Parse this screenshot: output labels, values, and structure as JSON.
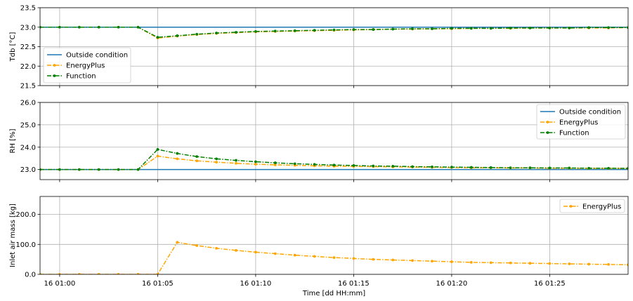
{
  "chart_data": [
    {
      "type": "line",
      "ylabel": "Tdb [°C]",
      "ylim": [
        21.5,
        23.5
      ],
      "yticks": [
        21.5,
        22.0,
        22.5,
        23.0,
        23.5
      ],
      "ytick_labels": [
        "21.5",
        "22.0",
        "22.5",
        "23.0",
        "23.5"
      ],
      "grid": true,
      "legend_position": "lower-left",
      "x": [
        -1,
        0,
        1,
        2,
        3,
        4,
        5,
        6,
        7,
        8,
        9,
        10,
        11,
        12,
        13,
        14,
        15,
        16,
        17,
        18,
        19,
        20,
        21,
        22,
        23,
        24,
        25,
        26,
        27,
        28,
        29
      ],
      "series": [
        {
          "name": "Outside condition",
          "color": "#1f77b4",
          "style": "solid",
          "marker": "none",
          "values": [
            23.0,
            23.0,
            23.0,
            23.0,
            23.0,
            23.0,
            23.0,
            23.0,
            23.0,
            23.0,
            23.0,
            23.0,
            23.0,
            23.0,
            23.0,
            23.0,
            23.0,
            23.0,
            23.0,
            23.0,
            23.0,
            23.0,
            23.0,
            23.0,
            23.0,
            23.0,
            23.0,
            23.0,
            23.0,
            23.0,
            23.0
          ]
        },
        {
          "name": "EnergyPlus",
          "color": "#ffa500",
          "style": "dashdot",
          "marker": "dot",
          "values": [
            23.0,
            23.0,
            23.0,
            23.0,
            23.0,
            23.0,
            22.72,
            22.77,
            22.81,
            22.84,
            22.86,
            22.88,
            22.89,
            22.9,
            22.91,
            22.92,
            22.93,
            22.94,
            22.95,
            22.95,
            22.96,
            22.96,
            22.97,
            22.97,
            22.97,
            22.98,
            22.98,
            22.98,
            22.98,
            22.98,
            22.99
          ]
        },
        {
          "name": "Function",
          "color": "#008000",
          "style": "dashdot",
          "marker": "dot",
          "values": [
            23.0,
            23.0,
            23.0,
            23.0,
            23.0,
            23.0,
            22.74,
            22.78,
            22.82,
            22.85,
            22.87,
            22.89,
            22.9,
            22.91,
            22.92,
            22.93,
            22.94,
            22.94,
            22.95,
            22.96,
            22.96,
            22.97,
            22.97,
            22.97,
            22.98,
            22.98,
            22.98,
            22.98,
            22.99,
            22.99,
            22.99
          ]
        }
      ]
    },
    {
      "type": "line",
      "ylabel": "RH [%]",
      "ylim": [
        22.55,
        26.0
      ],
      "yticks": [
        23.0,
        24.0,
        25.0,
        26.0
      ],
      "ytick_labels": [
        "23.0",
        "24.0",
        "25.0",
        "26.0"
      ],
      "grid": true,
      "legend_position": "top-right",
      "x": [
        -1,
        0,
        1,
        2,
        3,
        4,
        5,
        6,
        7,
        8,
        9,
        10,
        11,
        12,
        13,
        14,
        15,
        16,
        17,
        18,
        19,
        20,
        21,
        22,
        23,
        24,
        25,
        26,
        27,
        28,
        29
      ],
      "series": [
        {
          "name": "Outside condition",
          "color": "#1f77b4",
          "style": "solid",
          "marker": "none",
          "values": [
            23.0,
            23.0,
            23.0,
            23.0,
            23.0,
            23.0,
            23.0,
            23.0,
            23.0,
            23.0,
            23.0,
            23.0,
            23.0,
            23.0,
            23.0,
            23.0,
            23.0,
            23.0,
            23.0,
            23.0,
            23.0,
            23.0,
            23.0,
            23.0,
            23.0,
            23.0,
            23.0,
            23.0,
            23.0,
            23.0,
            23.0
          ]
        },
        {
          "name": "EnergyPlus",
          "color": "#ffa500",
          "style": "dashdot",
          "marker": "dot",
          "values": [
            23.0,
            23.0,
            23.0,
            23.0,
            23.0,
            23.0,
            23.6,
            23.48,
            23.39,
            23.33,
            23.28,
            23.24,
            23.21,
            23.19,
            23.17,
            23.15,
            23.14,
            23.13,
            23.12,
            23.11,
            23.1,
            23.09,
            23.08,
            23.08,
            23.07,
            23.07,
            23.06,
            23.06,
            23.05,
            23.05,
            23.05
          ]
        },
        {
          "name": "Function",
          "color": "#008000",
          "style": "dashdot",
          "marker": "dot",
          "values": [
            23.0,
            23.0,
            23.0,
            23.0,
            23.0,
            23.0,
            23.9,
            23.72,
            23.58,
            23.48,
            23.41,
            23.35,
            23.3,
            23.26,
            23.23,
            23.2,
            23.18,
            23.16,
            23.15,
            23.13,
            23.12,
            23.11,
            23.1,
            23.09,
            23.08,
            23.08,
            23.07,
            23.07,
            23.06,
            23.06,
            23.05
          ]
        }
      ]
    },
    {
      "type": "line",
      "ylabel": "Inlet air mass [kg]",
      "xlabel": "Time [dd HH:mm]",
      "ylim": [
        0,
        260
      ],
      "yticks": [
        0,
        100,
        200
      ],
      "ytick_labels": [
        "0.0",
        "100.0",
        "200.0"
      ],
      "grid": true,
      "legend_position": "top-right",
      "x": [
        -1,
        0,
        1,
        2,
        3,
        4,
        5,
        6,
        7,
        8,
        9,
        10,
        11,
        12,
        13,
        14,
        15,
        16,
        17,
        18,
        19,
        20,
        21,
        22,
        23,
        24,
        25,
        26,
        27,
        28,
        29
      ],
      "series": [
        {
          "name": "EnergyPlus",
          "color": "#ffa500",
          "style": "dashdot",
          "marker": "dot",
          "values": [
            0,
            0,
            0,
            0,
            0,
            0,
            0,
            107,
            96,
            87,
            80,
            74,
            69,
            64,
            60,
            56,
            53,
            50,
            48,
            46,
            44,
            42,
            40,
            39,
            38,
            37,
            36,
            35,
            34,
            33,
            32
          ]
        }
      ]
    }
  ],
  "x_axis": {
    "range": [
      -1,
      29
    ],
    "ticks": [
      0,
      5,
      10,
      15,
      20,
      25
    ],
    "tick_labels": [
      "16 01:00",
      "16 01:05",
      "16 01:10",
      "16 01:15",
      "16 01:20",
      "16 01:25"
    ]
  }
}
